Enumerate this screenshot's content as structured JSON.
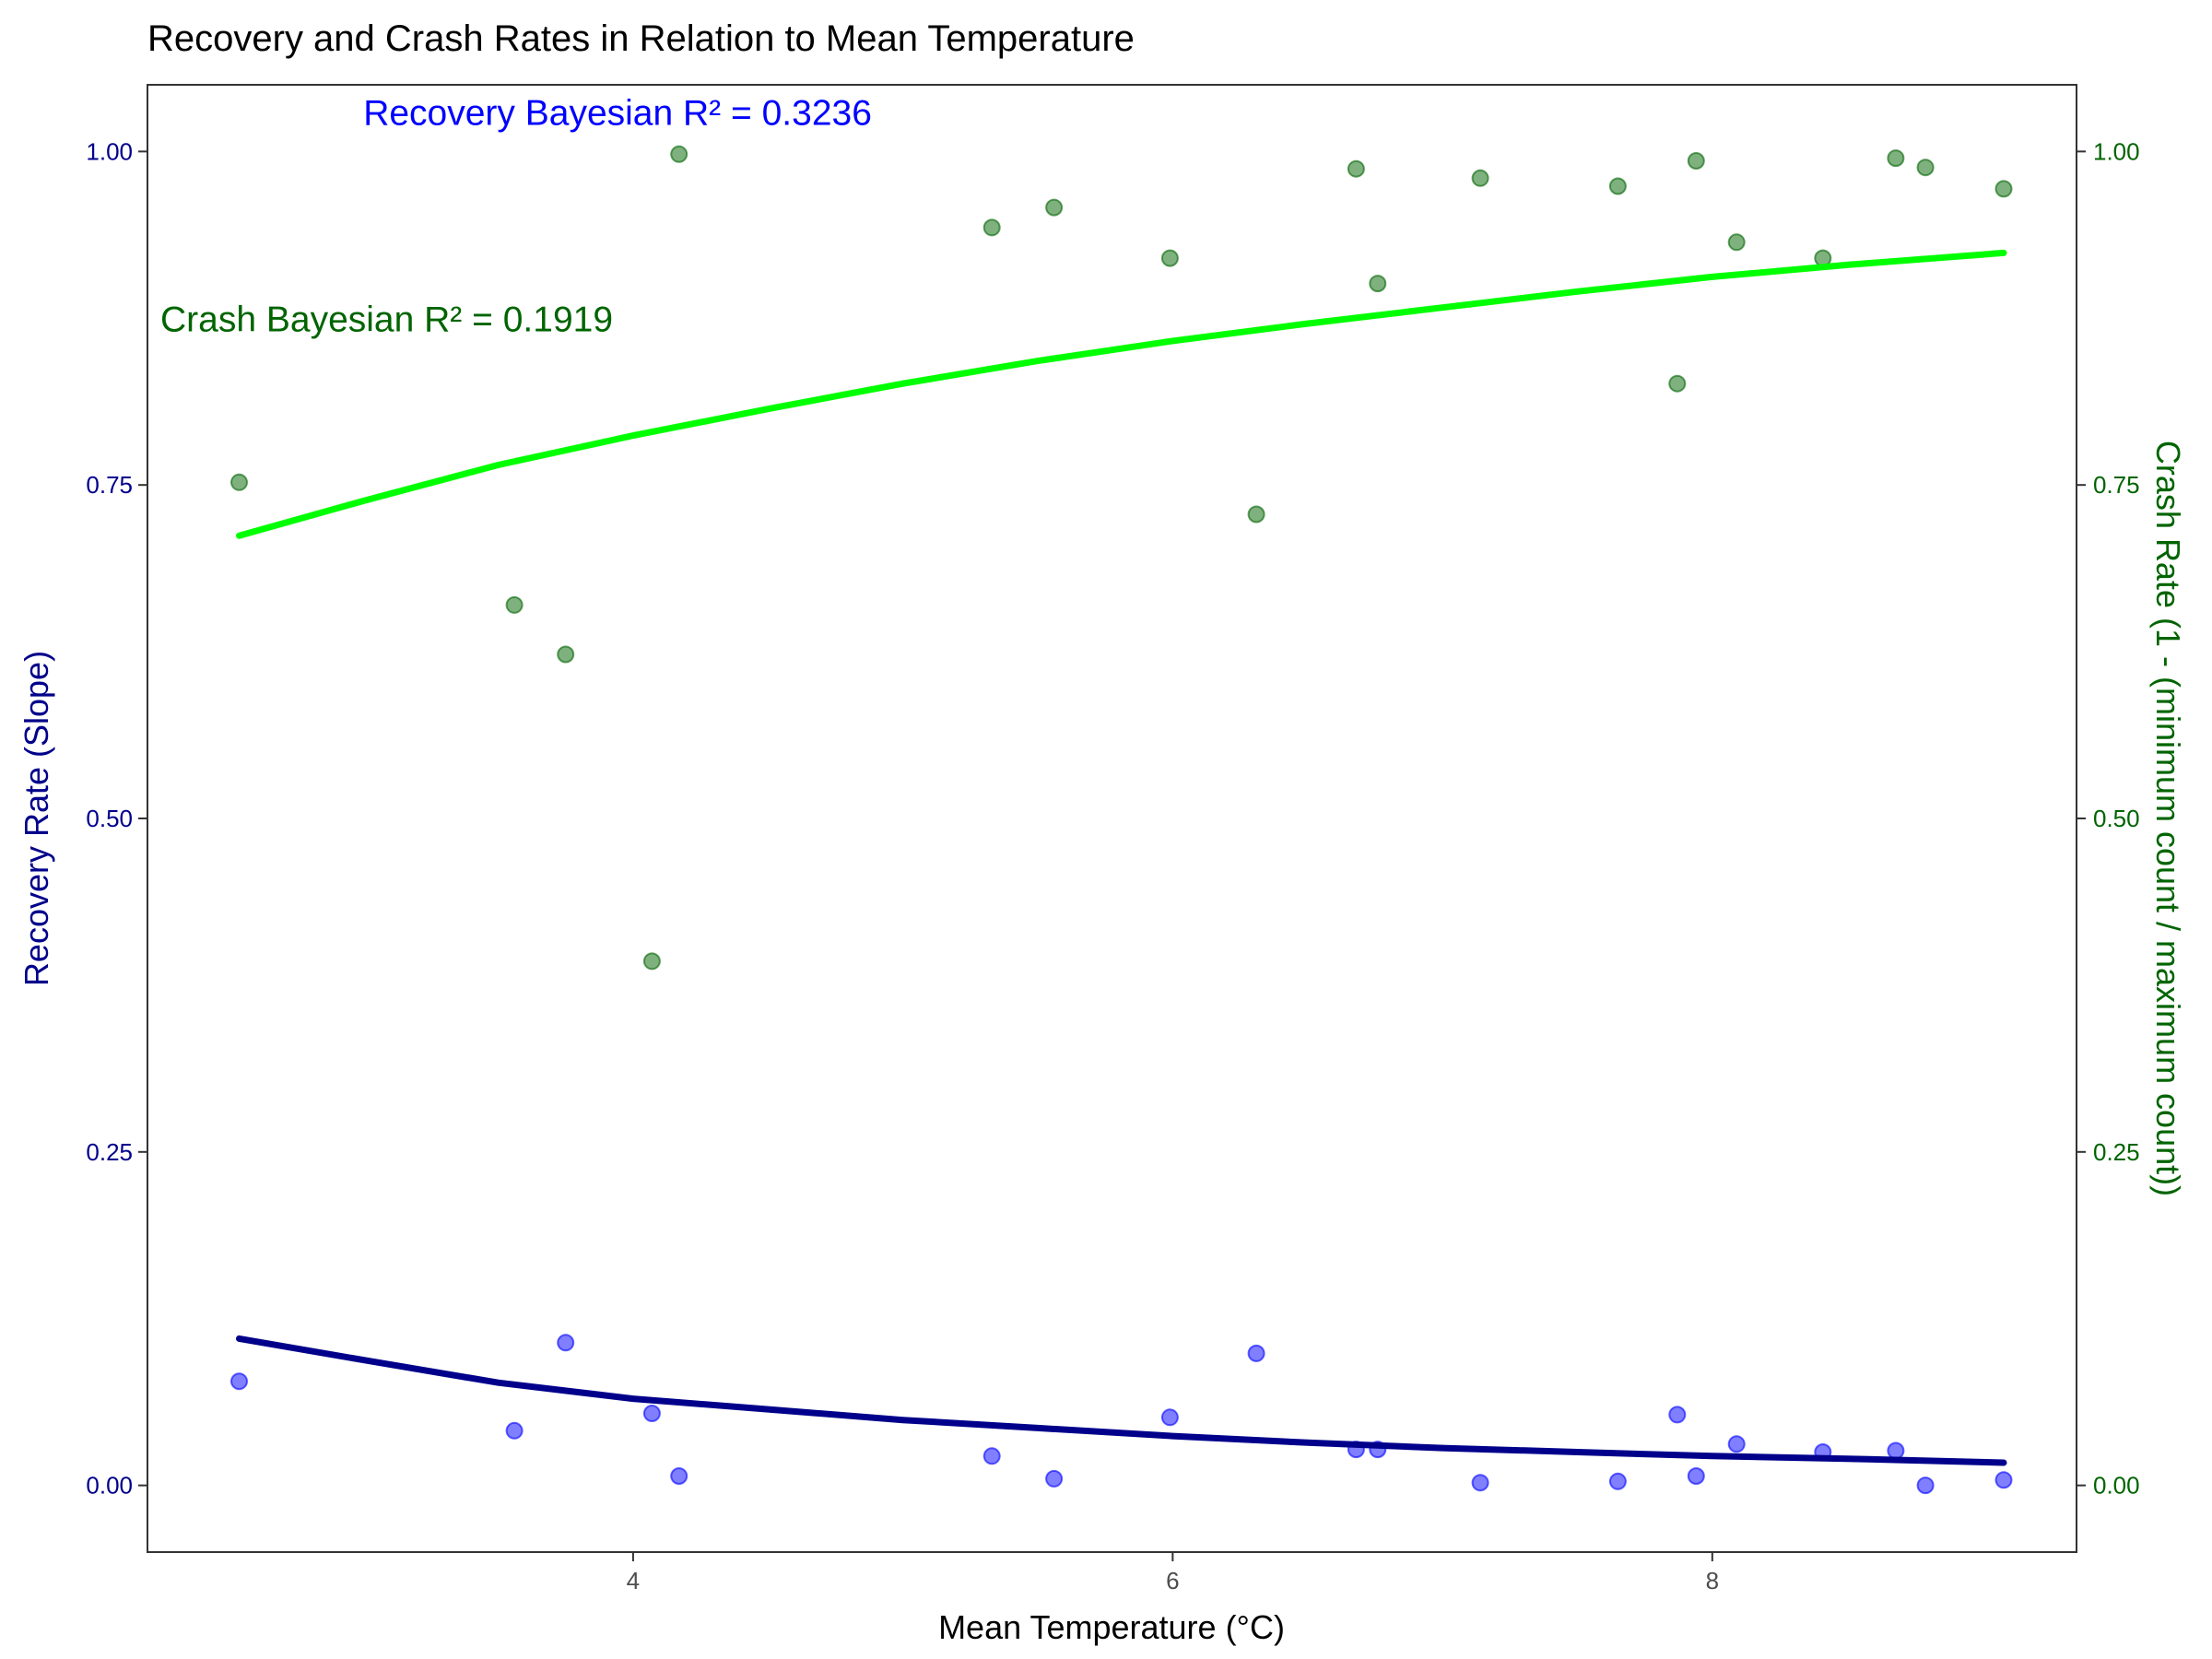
{
  "colors": {
    "recovery_points": "#0000ff",
    "recovery_line": "#00008b",
    "crash_points": "#006400",
    "crash_line": "#00ff00",
    "left_axis": "#00008b",
    "right_axis": "#006400",
    "recovery_annotation": "#0000ff",
    "crash_annotation": "#006400"
  },
  "chart_data": {
    "type": "scatter",
    "title": "Recovery and Crash Rates in Relation to Mean Temperature",
    "xlabel": "Mean Temperature (°C)",
    "ylabel": "Recovery Rate (Slope)",
    "ylabel_right": "Crash Rate (1 - (minimum count / maximum count))",
    "xlim": [
      2.2,
      9.35
    ],
    "ylim": [
      -0.05,
      1.05
    ],
    "y2lim": [
      -0.05,
      1.05
    ],
    "x_ticks": [
      4,
      6,
      8
    ],
    "x_tick_labels": [
      "4",
      "6",
      "8"
    ],
    "y_ticks": [
      0,
      0.25,
      0.5,
      0.75,
      1.0
    ],
    "y_tick_labels": [
      "0.00",
      "0.25",
      "0.50",
      "0.75",
      "1.00"
    ],
    "y2_ticks": [
      0,
      0.25,
      0.5,
      0.75,
      1.0
    ],
    "y2_tick_labels": [
      "0.00",
      "0.25",
      "0.50",
      "0.75",
      "1.00"
    ],
    "grid": false,
    "legend": "none",
    "annotations": [
      {
        "text": "Recovery Bayesian R² = 0.3236",
        "x": 3.0,
        "y": 1.02,
        "series": "recovery"
      },
      {
        "text": "Crash Bayesian R² = 0.1919",
        "x": 2.3,
        "y": 0.865,
        "series": "crash"
      }
    ],
    "series": [
      {
        "kind": "points",
        "axis": "left",
        "x": [
          2.54,
          3.56,
          3.75,
          4.07,
          4.17,
          5.33,
          5.56,
          5.99,
          6.31,
          6.68,
          6.76,
          7.14,
          7.65,
          7.87,
          7.94,
          8.09,
          8.41,
          8.68,
          8.79,
          9.08
        ],
        "y": [
          0.078,
          0.041,
          0.107,
          0.054,
          0.007,
          0.022,
          0.005,
          0.051,
          0.099,
          0.027,
          0.027,
          0.002,
          0.003,
          0.053,
          0.007,
          0.031,
          0.025,
          0.026,
          0.0,
          0.004
        ]
      },
      {
        "kind": "points",
        "axis": "right",
        "x": [
          2.54,
          3.56,
          3.75,
          4.07,
          4.17,
          5.33,
          5.56,
          5.99,
          6.31,
          6.68,
          6.76,
          7.14,
          7.65,
          7.87,
          7.94,
          8.09,
          8.41,
          8.68,
          8.79,
          9.08
        ],
        "y": [
          0.752,
          0.66,
          0.623,
          0.393,
          0.998,
          0.943,
          0.958,
          0.92,
          0.728,
          0.987,
          0.901,
          0.98,
          0.974,
          0.826,
          0.993,
          0.932,
          0.92,
          0.995,
          0.988,
          0.972
        ]
      },
      {
        "kind": "line",
        "axis": "left",
        "x": [
          2.54,
          3.0,
          3.5,
          4.0,
          4.5,
          5.0,
          5.5,
          6.0,
          6.5,
          7.0,
          7.5,
          8.0,
          8.5,
          9.08
        ],
        "y": [
          0.11,
          0.094,
          0.077,
          0.065,
          0.057,
          0.049,
          0.043,
          0.037,
          0.032,
          0.028,
          0.025,
          0.022,
          0.02,
          0.017
        ]
      },
      {
        "kind": "line",
        "axis": "right",
        "x": [
          2.54,
          3.0,
          3.5,
          4.0,
          4.5,
          5.0,
          5.5,
          6.0,
          6.5,
          7.0,
          7.5,
          8.0,
          8.5,
          9.08
        ],
        "y": [
          0.712,
          0.738,
          0.765,
          0.787,
          0.807,
          0.826,
          0.843,
          0.858,
          0.871,
          0.883,
          0.895,
          0.906,
          0.915,
          0.924
        ]
      }
    ]
  }
}
